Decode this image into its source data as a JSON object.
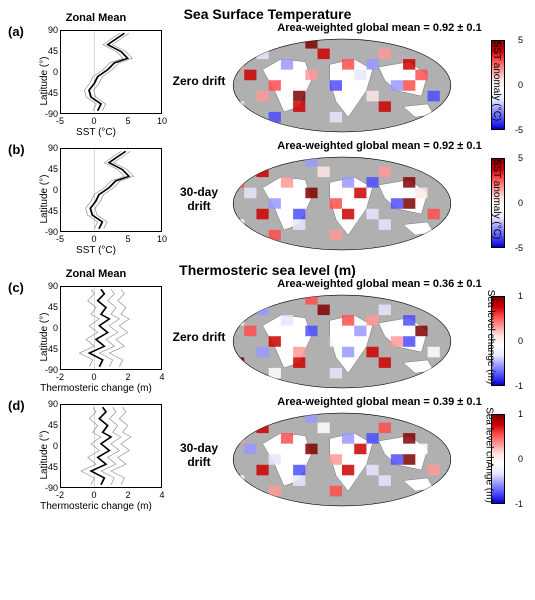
{
  "section1_title": "Sea Surface Temperature",
  "section2_title": "Thermosteric sea level  (m)",
  "panels": {
    "a": {
      "label": "(a)",
      "zonal_title": "Zonal Mean",
      "row_label": "Zero drift",
      "map_title": "Area-weighted global mean = 0.92 ± 0.1",
      "cbar_label": "SST anomaly (°C)"
    },
    "b": {
      "label": "(b)",
      "zonal_title": "",
      "row_label": "30-day\ndrift",
      "map_title": "Area-weighted global mean = 0.92 ± 0.1",
      "cbar_label": "SST anomaly (°C)"
    },
    "c": {
      "label": "(c)",
      "zonal_title": "Zonal Mean",
      "row_label": "Zero drift",
      "map_title": "Area-weighted global mean = 0.36 ± 0.1",
      "cbar_label": "Sea level change (m)"
    },
    "d": {
      "label": "(d)",
      "zonal_title": "",
      "row_label": "30-day\ndrift",
      "map_title": "Area-weighted global mean = 0.39 ± 0.1",
      "cbar_label": "Sea level chAnge (m)"
    }
  },
  "sst_axis": {
    "ylabel": "Latitude (°)",
    "xlabel": "SST (°C)",
    "xlim": [
      -5,
      10
    ],
    "ylim": [
      -90,
      90
    ],
    "yticks": [
      -90,
      -45,
      0,
      45,
      90
    ],
    "xticks": [
      -5,
      0,
      5,
      10
    ],
    "cbar_range": [
      -5,
      5
    ],
    "cbar_ticks": [
      -5,
      0,
      5
    ]
  },
  "therm_axis": {
    "ylabel": "Latitude (°)",
    "xlabel": "Thermosteric change (m)",
    "xlim": [
      -2,
      4
    ],
    "ylim": [
      -90,
      90
    ],
    "yticks": [
      -90,
      -45,
      0,
      45,
      90
    ],
    "xticks": [
      -2,
      0,
      2,
      4
    ],
    "cbar_range": [
      -1,
      1
    ],
    "cbar_ticks": [
      -1,
      0,
      1
    ]
  },
  "colors": {
    "line_main": "#000000",
    "line_aux": "#999999",
    "map_land": "#ffffff",
    "map_ocean": "#b0b0b0",
    "cmap": [
      "#0000cc",
      "#4d4dff",
      "#9999ff",
      "#e6e6ff",
      "#ffffff",
      "#ffe6e6",
      "#ff9999",
      "#ff4d4d",
      "#cc0000",
      "#800000"
    ]
  },
  "zonal_series": {
    "a_main": [
      [
        0.5,
        -85
      ],
      [
        1,
        -70
      ],
      [
        -0.5,
        -55
      ],
      [
        -0.8,
        -40
      ],
      [
        0,
        -25
      ],
      [
        0.5,
        -10
      ],
      [
        2,
        5
      ],
      [
        3,
        20
      ],
      [
        5,
        30
      ],
      [
        4,
        45
      ],
      [
        2,
        60
      ],
      [
        3.5,
        75
      ],
      [
        4.5,
        85
      ]
    ],
    "a_aux1": [
      [
        -0.2,
        -85
      ],
      [
        0.3,
        -70
      ],
      [
        -1.2,
        -55
      ],
      [
        -1.5,
        -40
      ],
      [
        -0.7,
        -25
      ],
      [
        -0.2,
        -10
      ],
      [
        1.3,
        5
      ],
      [
        2.3,
        20
      ],
      [
        4.3,
        30
      ],
      [
        3.3,
        45
      ],
      [
        1.3,
        60
      ],
      [
        2.8,
        75
      ],
      [
        3.8,
        85
      ]
    ],
    "a_aux2": [
      [
        1.2,
        -85
      ],
      [
        1.7,
        -70
      ],
      [
        0.2,
        -55
      ],
      [
        -0.1,
        -40
      ],
      [
        0.7,
        -25
      ],
      [
        1.2,
        -10
      ],
      [
        2.7,
        5
      ],
      [
        3.7,
        20
      ],
      [
        5.7,
        30
      ],
      [
        4.7,
        45
      ],
      [
        2.7,
        60
      ],
      [
        4.2,
        75
      ],
      [
        5.2,
        85
      ]
    ],
    "b_main": [
      [
        0.7,
        -85
      ],
      [
        1.2,
        -70
      ],
      [
        -0.3,
        -55
      ],
      [
        -0.6,
        -40
      ],
      [
        0.2,
        -25
      ],
      [
        0.7,
        -10
      ],
      [
        2.2,
        5
      ],
      [
        3.2,
        20
      ],
      [
        5.2,
        30
      ],
      [
        4.2,
        45
      ],
      [
        2.2,
        60
      ],
      [
        3.7,
        75
      ],
      [
        4.7,
        85
      ]
    ],
    "b_aux1": [
      [
        0,
        -85
      ],
      [
        0.5,
        -70
      ],
      [
        -1,
        -55
      ],
      [
        -1.3,
        -40
      ],
      [
        -0.5,
        -25
      ],
      [
        0,
        -10
      ],
      [
        1.5,
        5
      ],
      [
        2.5,
        20
      ],
      [
        4.5,
        30
      ],
      [
        3.5,
        45
      ],
      [
        1.5,
        60
      ],
      [
        3,
        75
      ],
      [
        4,
        85
      ]
    ],
    "b_aux2": [
      [
        1.4,
        -85
      ],
      [
        1.9,
        -70
      ],
      [
        0.4,
        -55
      ],
      [
        0.1,
        -40
      ],
      [
        0.9,
        -25
      ],
      [
        1.4,
        -10
      ],
      [
        2.9,
        5
      ],
      [
        3.9,
        20
      ],
      [
        5.9,
        30
      ],
      [
        4.9,
        45
      ],
      [
        2.9,
        60
      ],
      [
        4.4,
        75
      ],
      [
        5.4,
        85
      ]
    ],
    "c_main": [
      [
        0.3,
        -85
      ],
      [
        0.5,
        -70
      ],
      [
        -0.3,
        -55
      ],
      [
        0.6,
        -40
      ],
      [
        0.1,
        -25
      ],
      [
        0.8,
        -10
      ],
      [
        0.3,
        5
      ],
      [
        0.9,
        20
      ],
      [
        0.4,
        30
      ],
      [
        0.7,
        45
      ],
      [
        0.2,
        60
      ],
      [
        0.6,
        75
      ],
      [
        0.4,
        85
      ]
    ],
    "c_aux1": [
      [
        -0.3,
        -85
      ],
      [
        -0.1,
        -70
      ],
      [
        -0.9,
        -55
      ],
      [
        0,
        -40
      ],
      [
        -0.5,
        -25
      ],
      [
        0.2,
        -10
      ],
      [
        -0.3,
        5
      ],
      [
        0.3,
        20
      ],
      [
        -0.2,
        30
      ],
      [
        0.1,
        45
      ],
      [
        -0.4,
        60
      ],
      [
        0,
        75
      ],
      [
        -0.2,
        85
      ]
    ],
    "c_aux2": [
      [
        0.9,
        -85
      ],
      [
        1.1,
        -70
      ],
      [
        0.3,
        -55
      ],
      [
        1.2,
        -40
      ],
      [
        0.7,
        -25
      ],
      [
        1.4,
        -10
      ],
      [
        0.9,
        5
      ],
      [
        1.5,
        20
      ],
      [
        1,
        30
      ],
      [
        1.3,
        45
      ],
      [
        0.8,
        60
      ],
      [
        1.2,
        75
      ],
      [
        1,
        85
      ]
    ],
    "c_aux3": [
      [
        1.5,
        -85
      ],
      [
        1.7,
        -70
      ],
      [
        0.9,
        -55
      ],
      [
        1.8,
        -40
      ],
      [
        1.3,
        -25
      ],
      [
        2,
        -10
      ],
      [
        1.5,
        5
      ],
      [
        2.1,
        20
      ],
      [
        1.6,
        30
      ],
      [
        1.9,
        45
      ],
      [
        1.4,
        60
      ],
      [
        1.8,
        75
      ],
      [
        1.6,
        85
      ]
    ],
    "d_main": [
      [
        0.4,
        -85
      ],
      [
        0.6,
        -70
      ],
      [
        -0.2,
        -55
      ],
      [
        0.7,
        -40
      ],
      [
        0.2,
        -25
      ],
      [
        0.9,
        -10
      ],
      [
        0.4,
        5
      ],
      [
        1,
        20
      ],
      [
        0.5,
        30
      ],
      [
        0.8,
        45
      ],
      [
        0.3,
        60
      ],
      [
        0.7,
        75
      ],
      [
        0.5,
        85
      ]
    ],
    "d_aux1": [
      [
        -0.2,
        -85
      ],
      [
        0,
        -70
      ],
      [
        -0.8,
        -55
      ],
      [
        0.1,
        -40
      ],
      [
        -0.4,
        -25
      ],
      [
        0.3,
        -10
      ],
      [
        -0.2,
        5
      ],
      [
        0.4,
        20
      ],
      [
        -0.1,
        30
      ],
      [
        0.2,
        45
      ],
      [
        -0.3,
        60
      ],
      [
        0.1,
        75
      ],
      [
        -0.1,
        85
      ]
    ],
    "d_aux2": [
      [
        1,
        -85
      ],
      [
        1.2,
        -70
      ],
      [
        0.4,
        -55
      ],
      [
        1.3,
        -40
      ],
      [
        0.8,
        -25
      ],
      [
        1.5,
        -10
      ],
      [
        1,
        5
      ],
      [
        1.6,
        20
      ],
      [
        1.1,
        30
      ],
      [
        1.4,
        45
      ],
      [
        0.9,
        60
      ],
      [
        1.3,
        75
      ],
      [
        1.1,
        85
      ]
    ],
    "d_aux3": [
      [
        1.6,
        -85
      ],
      [
        1.8,
        -70
      ],
      [
        1,
        -55
      ],
      [
        1.9,
        -40
      ],
      [
        1.4,
        -25
      ],
      [
        2.1,
        -10
      ],
      [
        1.6,
        5
      ],
      [
        2.2,
        20
      ],
      [
        1.7,
        30
      ],
      [
        2,
        45
      ],
      [
        1.5,
        60
      ],
      [
        1.9,
        75
      ],
      [
        1.7,
        85
      ]
    ]
  },
  "map_grid": {
    "lon_cells": 18,
    "lat_cells": 9
  },
  "map_cells": {
    "a": [
      [
        0,
        2,
        6
      ],
      [
        1,
        3,
        8
      ],
      [
        2,
        1,
        3
      ],
      [
        3,
        4,
        7
      ],
      [
        4,
        2,
        2
      ],
      [
        5,
        5,
        9
      ],
      [
        6,
        3,
        6
      ],
      [
        7,
        1,
        8
      ],
      [
        8,
        4,
        1
      ],
      [
        9,
        2,
        7
      ],
      [
        10,
        3,
        3
      ],
      [
        11,
        5,
        5
      ],
      [
        12,
        1,
        6
      ],
      [
        13,
        4,
        2
      ],
      [
        14,
        2,
        8
      ],
      [
        15,
        3,
        7
      ],
      [
        16,
        5,
        1
      ],
      [
        17,
        1,
        9
      ],
      [
        2,
        5,
        6
      ],
      [
        5,
        6,
        8
      ],
      [
        8,
        7,
        3
      ],
      [
        11,
        2,
        2
      ],
      [
        14,
        4,
        7
      ],
      [
        0,
        6,
        5
      ],
      [
        3,
        7,
        1
      ],
      [
        6,
        0,
        9
      ],
      [
        9,
        5,
        4
      ],
      [
        12,
        6,
        8
      ],
      [
        15,
        0,
        2
      ],
      [
        17,
        7,
        6
      ]
    ],
    "b": [
      [
        0,
        2,
        7
      ],
      [
        1,
        3,
        3
      ],
      [
        2,
        1,
        8
      ],
      [
        3,
        4,
        2
      ],
      [
        4,
        2,
        6
      ],
      [
        5,
        5,
        1
      ],
      [
        6,
        3,
        9
      ],
      [
        7,
        1,
        5
      ],
      [
        8,
        4,
        7
      ],
      [
        9,
        2,
        2
      ],
      [
        10,
        3,
        8
      ],
      [
        11,
        5,
        3
      ],
      [
        12,
        1,
        6
      ],
      [
        13,
        4,
        1
      ],
      [
        14,
        2,
        9
      ],
      [
        15,
        3,
        5
      ],
      [
        16,
        5,
        7
      ],
      [
        17,
        1,
        2
      ],
      [
        2,
        5,
        8
      ],
      [
        5,
        6,
        3
      ],
      [
        8,
        7,
        6
      ],
      [
        11,
        2,
        1
      ],
      [
        14,
        4,
        9
      ],
      [
        0,
        6,
        4
      ],
      [
        3,
        7,
        7
      ],
      [
        6,
        0,
        2
      ],
      [
        9,
        5,
        8
      ],
      [
        12,
        6,
        3
      ],
      [
        15,
        0,
        6
      ],
      [
        17,
        7,
        1
      ]
    ],
    "c": [
      [
        0,
        2,
        5
      ],
      [
        1,
        3,
        7
      ],
      [
        2,
        1,
        2
      ],
      [
        3,
        4,
        8
      ],
      [
        4,
        2,
        3
      ],
      [
        5,
        5,
        6
      ],
      [
        6,
        3,
        1
      ],
      [
        7,
        1,
        9
      ],
      [
        8,
        4,
        4
      ],
      [
        9,
        2,
        7
      ],
      [
        10,
        3,
        2
      ],
      [
        11,
        5,
        8
      ],
      [
        12,
        1,
        3
      ],
      [
        13,
        4,
        6
      ],
      [
        14,
        2,
        1
      ],
      [
        15,
        3,
        9
      ],
      [
        16,
        5,
        4
      ],
      [
        17,
        1,
        7
      ],
      [
        2,
        5,
        2
      ],
      [
        5,
        6,
        8
      ],
      [
        8,
        7,
        3
      ],
      [
        11,
        2,
        6
      ],
      [
        14,
        4,
        1
      ],
      [
        0,
        6,
        9
      ],
      [
        3,
        7,
        4
      ],
      [
        6,
        0,
        7
      ],
      [
        9,
        5,
        2
      ],
      [
        12,
        6,
        8
      ],
      [
        15,
        0,
        3
      ],
      [
        17,
        7,
        6
      ]
    ],
    "d": [
      [
        0,
        2,
        6
      ],
      [
        1,
        3,
        2
      ],
      [
        2,
        1,
        8
      ],
      [
        3,
        4,
        3
      ],
      [
        4,
        2,
        7
      ],
      [
        5,
        5,
        1
      ],
      [
        6,
        3,
        9
      ],
      [
        7,
        1,
        4
      ],
      [
        8,
        4,
        6
      ],
      [
        9,
        2,
        2
      ],
      [
        10,
        3,
        8
      ],
      [
        11,
        5,
        3
      ],
      [
        12,
        1,
        7
      ],
      [
        13,
        4,
        1
      ],
      [
        14,
        2,
        9
      ],
      [
        15,
        3,
        4
      ],
      [
        16,
        5,
        6
      ],
      [
        17,
        1,
        2
      ],
      [
        2,
        5,
        8
      ],
      [
        5,
        6,
        3
      ],
      [
        8,
        7,
        7
      ],
      [
        11,
        2,
        1
      ],
      [
        14,
        4,
        9
      ],
      [
        0,
        6,
        4
      ],
      [
        3,
        7,
        6
      ],
      [
        6,
        0,
        2
      ],
      [
        9,
        5,
        8
      ],
      [
        12,
        6,
        3
      ],
      [
        15,
        0,
        7
      ],
      [
        17,
        7,
        1
      ]
    ]
  }
}
